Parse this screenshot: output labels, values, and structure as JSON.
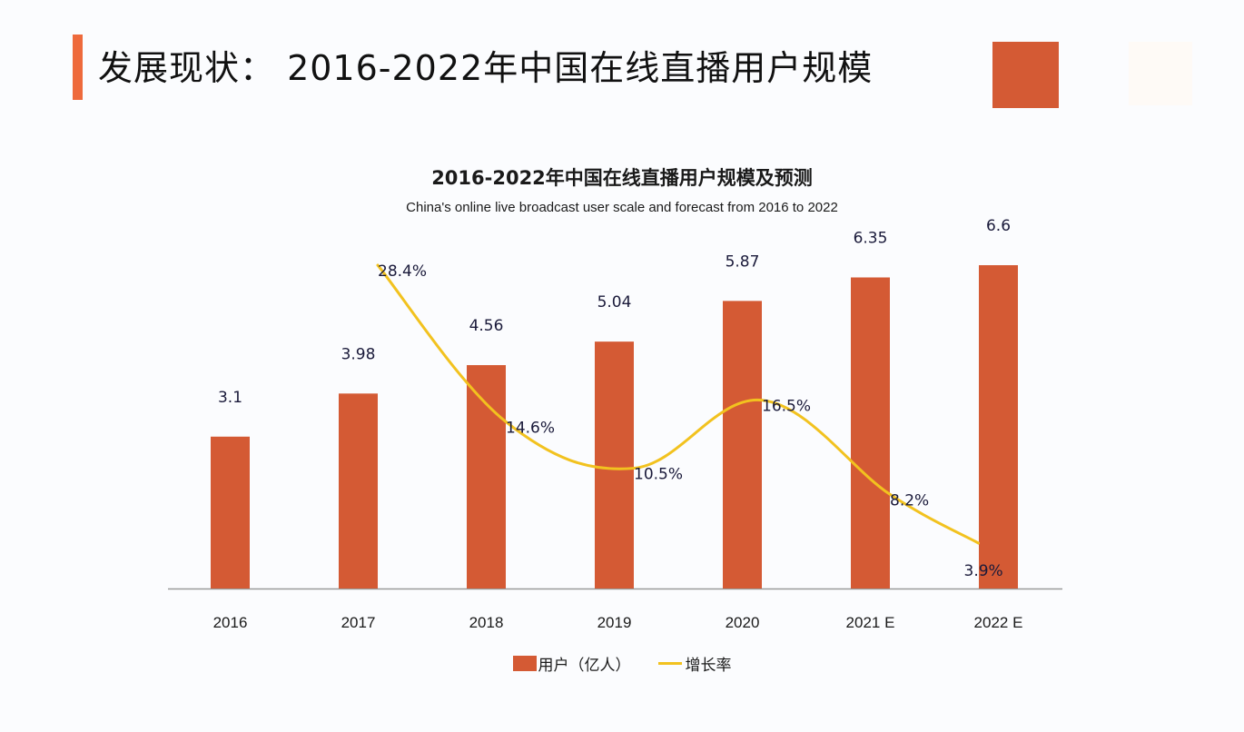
{
  "header": {
    "title": "发展现状： 2016-2022年中国在线直播用户规模"
  },
  "colors": {
    "accent": "#ee6a3c",
    "bar": "#d45a34",
    "line": "#f2c21f",
    "text": "#1a1a1a",
    "axis": "#9a9a9a"
  },
  "chart_data": {
    "type": "bar",
    "title": "2016-2022年中国在线直播用户规模及预测",
    "subtitle": "China's online live broadcast user scale and forecast from 2016 to 2022",
    "categories": [
      "2016",
      "2017",
      "2018",
      "2019",
      "2020",
      "2021 E",
      "2022 E"
    ],
    "series": [
      {
        "name": "用户（亿人）",
        "type": "bar",
        "values": [
          3.1,
          3.98,
          4.56,
          5.04,
          5.87,
          6.35,
          6.6
        ],
        "labels": [
          "3.1",
          "3.98",
          "4.56",
          "5.04",
          "5.87",
          "6.35",
          "6.6"
        ]
      },
      {
        "name": "增长率",
        "type": "line",
        "values": [
          null,
          28.4,
          14.6,
          10.5,
          16.5,
          8.2,
          3.9
        ],
        "labels": [
          "",
          "28.4%",
          "14.6%",
          "10.5%",
          "16.5%",
          "8.2%",
          "3.9%"
        ]
      }
    ],
    "xlabel": "",
    "ylabel": "",
    "ylim": [
      0,
      6.6
    ],
    "y2lim": [
      0,
      30
    ],
    "grid": false,
    "legend_position": "bottom"
  }
}
